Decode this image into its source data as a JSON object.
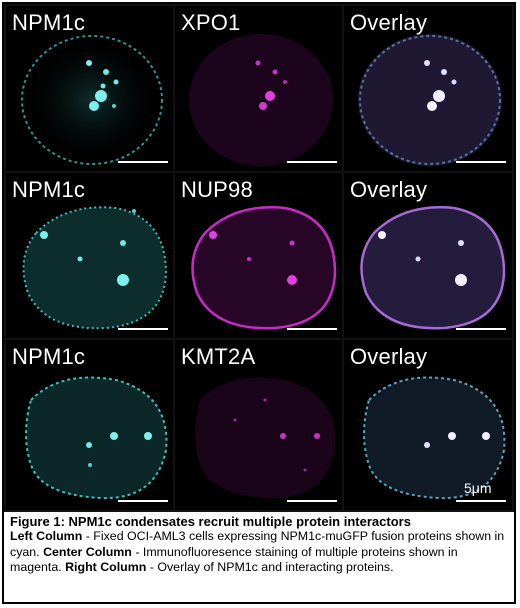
{
  "colors": {
    "cyan": "#3fd4d4",
    "magenta": "#d22ed2",
    "overlay": "#c8b0ee",
    "scale_bar": "#ffffff"
  },
  "rows": [
    {
      "labels": [
        "NPM1c",
        "XPO1",
        "Overlay"
      ]
    },
    {
      "labels": [
        "NPM1c",
        "NUP98",
        "Overlay"
      ]
    },
    {
      "labels": [
        "NPM1c",
        "KMT2A",
        "Overlay"
      ]
    }
  ],
  "scale_bar_label": "5μm",
  "caption": {
    "title": "Figure 1: NPM1c condensates recruit multiple protein interactors",
    "left_label": "Left Column",
    "left_text": " - Fixed OCI-AML3 cells expressing NPM1c-muGFP fusion proteins shown in cyan. ",
    "center_label": "Center Column",
    "center_text": " - Immunofluoresence staining of multiple proteins shown in magenta. ",
    "right_label": "Right Column",
    "right_text": " - Overlay of NPM1c and interacting proteins."
  }
}
